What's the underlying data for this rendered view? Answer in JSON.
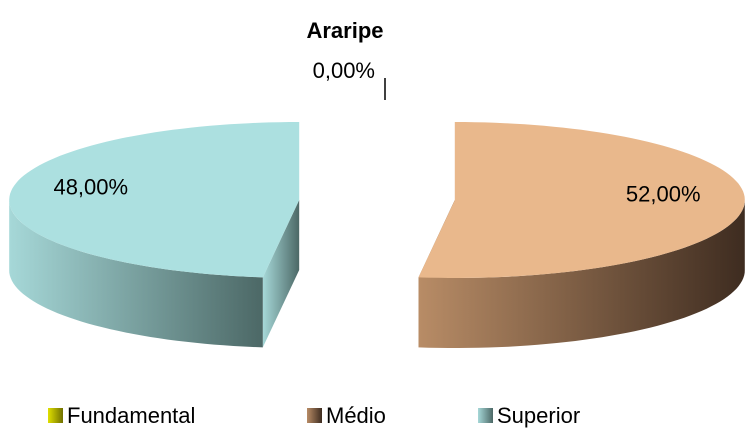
{
  "chart_data": {
    "type": "pie",
    "title": "Araripe",
    "categories": [
      "Fundamental",
      "Médio",
      "Superior"
    ],
    "values": [
      0,
      52,
      48
    ],
    "value_labels": [
      "0,00%",
      "52,00%",
      "48,00%"
    ],
    "colors": [
      "#e0e000",
      "#e9b88c",
      "#ace0e0"
    ],
    "legend": "bottom"
  }
}
